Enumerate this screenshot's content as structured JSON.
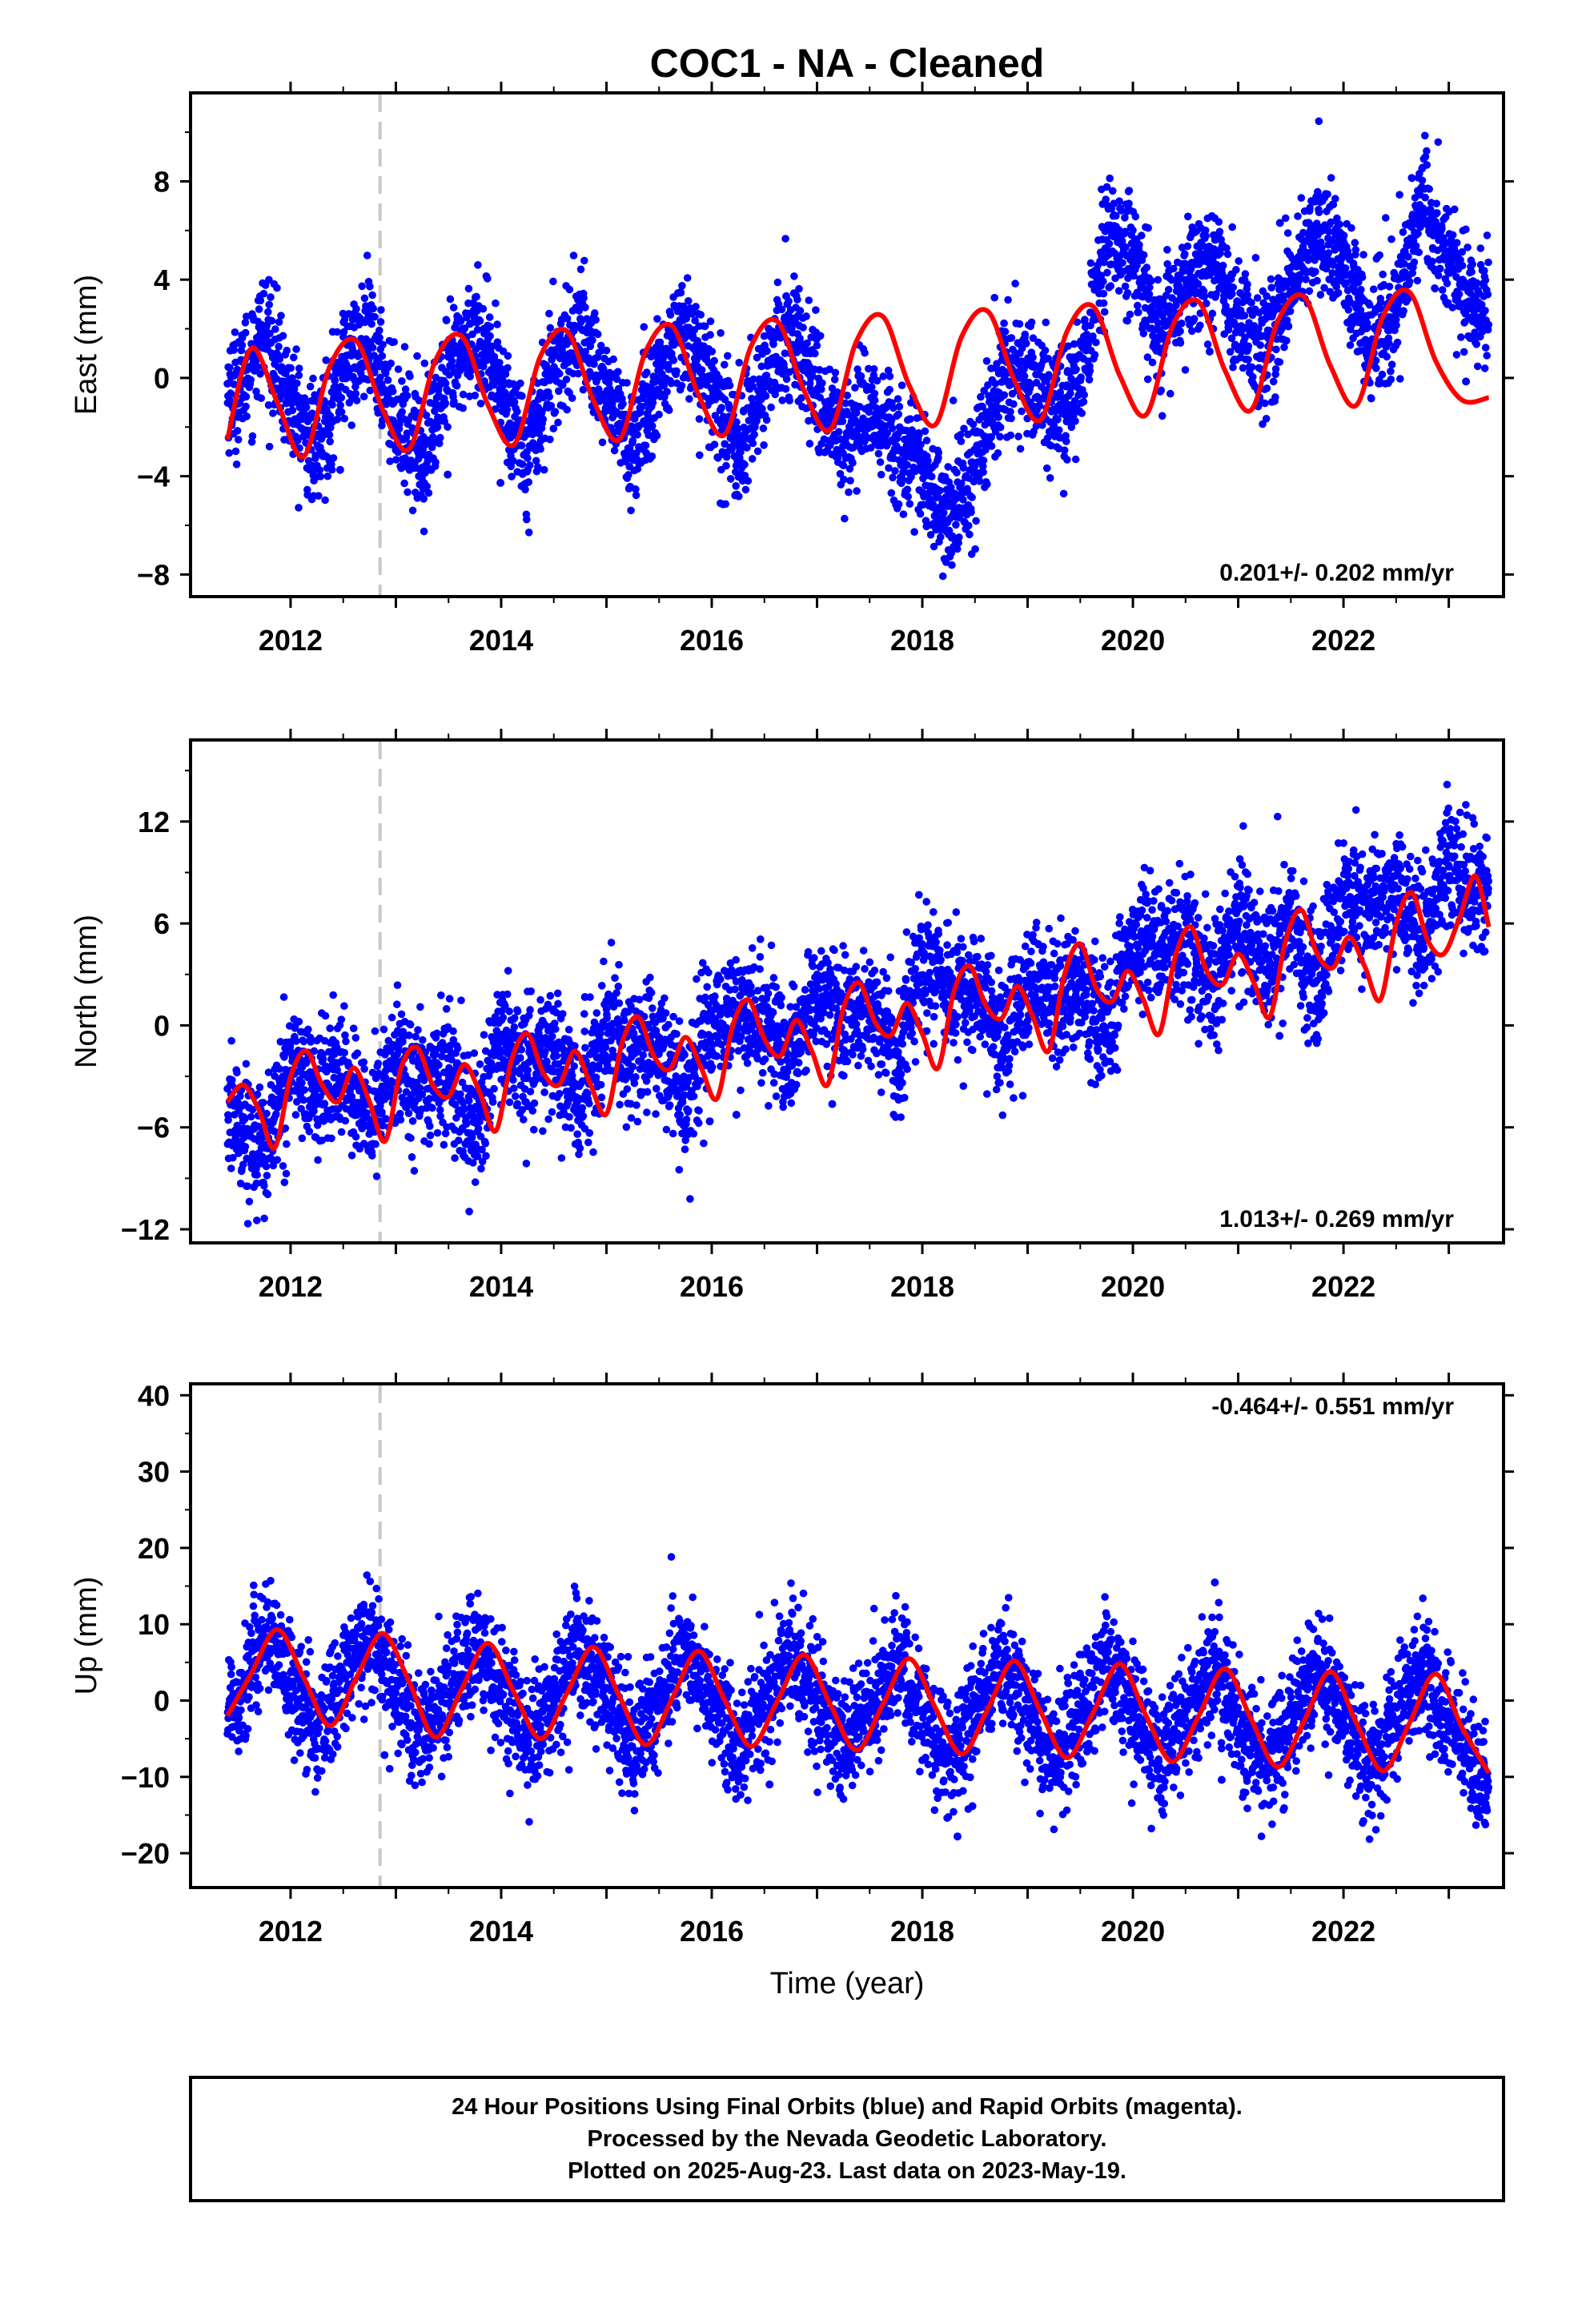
{
  "figure": {
    "title": "COC1  - NA - Cleaned",
    "xlabel": "Time (year)",
    "footer": [
      "24 Hour Positions Using Final Orbits (blue) and Rapid Orbits (magenta).",
      "Processed by the Nevada Geodetic Laboratory.",
      "Plotted on 2025-Aug-23. Last data on 2023-May-19."
    ],
    "colors": {
      "data": "#0000ff",
      "fit": "#ff0000",
      "event_line": "#c8c8c8",
      "axes": "#000000"
    }
  },
  "chart_data": [
    {
      "type": "scatter",
      "component": "East",
      "ylabel": "East (mm)",
      "xlim": [
        2011.05,
        2023.52
      ],
      "ylim": [
        -8.9,
        11.6
      ],
      "yticks": [
        -8,
        -4,
        0,
        4,
        8
      ],
      "xticks": [
        2012,
        2014,
        2016,
        2018,
        2020,
        2022
      ],
      "rate_label": "0.201+/- 0.202 mm/yr",
      "rate_position": "bottom-right",
      "event_line_x": 2012.85,
      "data_range": [
        2011.4,
        2023.38
      ],
      "series": [
        {
          "name": "",
          "style": "blue-dots",
          "x": [
            2011.5,
            2011.75,
            2012.0,
            2012.25,
            2012.5,
            2012.75,
            2013.0,
            2013.25,
            2013.5,
            2013.75,
            2014.0,
            2014.25,
            2014.5,
            2014.75,
            2015.0,
            2015.25,
            2015.5,
            2015.75,
            2016.0,
            2016.25,
            2016.5,
            2016.75,
            2017.0,
            2017.25,
            2017.5,
            2017.75,
            2018.0,
            2018.25,
            2018.5,
            2018.75,
            2019.0,
            2019.25,
            2019.5,
            2019.75,
            2020.0,
            2020.25,
            2020.5,
            2020.75,
            2021.0,
            2021.25,
            2021.5,
            2021.75,
            2022.0,
            2022.25,
            2022.5,
            2022.75,
            2023.0,
            2023.25
          ],
          "y": [
            -0.5,
            2.0,
            -1.0,
            -3.0,
            0.5,
            1.5,
            -1.5,
            -3.0,
            0.0,
            2.0,
            -0.5,
            -3.0,
            0.5,
            2.0,
            -0.5,
            -3.0,
            0.0,
            2.0,
            -0.5,
            -3.0,
            0.0,
            2.0,
            -0.5,
            -2.5,
            -1.0,
            -2.5,
            -4.0,
            -5.5,
            -4.0,
            0.5,
            0.0,
            -1.0,
            -0.5,
            6.0,
            5.0,
            1.5,
            4.0,
            5.0,
            2.5,
            1.0,
            3.5,
            6.0,
            4.5,
            1.5,
            3.0,
            7.0,
            5.0,
            3.0
          ],
          "noise_mm": 1.2
        },
        {
          "name": "",
          "style": "red-fit",
          "x": [
            2011.4,
            2011.625,
            2011.875,
            2012.125,
            2012.375,
            2012.625,
            2012.875,
            2013.125,
            2013.375,
            2013.625,
            2013.875,
            2014.125,
            2014.375,
            2014.625,
            2014.875,
            2015.125,
            2015.375,
            2015.625,
            2015.875,
            2016.125,
            2016.375,
            2016.625,
            2016.875,
            2017.125,
            2017.375,
            2017.625,
            2017.875,
            2018.125,
            2018.375,
            2018.625,
            2018.875,
            2019.125,
            2019.375,
            2019.625,
            2019.875,
            2020.125,
            2020.375,
            2020.625,
            2020.875,
            2021.125,
            2021.375,
            2021.625,
            2021.875,
            2022.125,
            2022.375,
            2022.625,
            2022.875,
            2023.125,
            2023.38
          ],
          "y": [
            -2.5,
            1.2,
            -1.0,
            -3.2,
            0.5,
            1.5,
            -1.3,
            -2.9,
            0.7,
            1.7,
            -1.1,
            -2.7,
            0.9,
            1.9,
            -0.9,
            -2.5,
            1.1,
            2.1,
            -0.7,
            -2.3,
            1.3,
            2.3,
            -0.5,
            -2.1,
            1.5,
            2.5,
            -0.3,
            -1.9,
            1.7,
            2.7,
            -0.1,
            -1.7,
            1.9,
            2.9,
            0.1,
            -1.5,
            2.1,
            3.1,
            0.3,
            -1.3,
            2.3,
            3.3,
            0.5,
            -1.1,
            2.5,
            3.5,
            0.7,
            -0.9,
            -0.8
          ]
        }
      ]
    },
    {
      "type": "scatter",
      "component": "North",
      "ylabel": "North (mm)",
      "xlim": [
        2011.05,
        2023.52
      ],
      "ylim": [
        -12.8,
        16.8
      ],
      "yticks": [
        -12,
        -6,
        0,
        6,
        12
      ],
      "xticks": [
        2012,
        2014,
        2016,
        2018,
        2020,
        2022
      ],
      "rate_label": "1.013+/- 0.269 mm/yr",
      "rate_position": "bottom-right",
      "event_line_x": 2012.85,
      "data_range": [
        2011.4,
        2023.38
      ],
      "series": [
        {
          "name": "",
          "style": "blue-dots",
          "x": [
            2011.5,
            2011.75,
            2012.0,
            2012.25,
            2012.5,
            2012.75,
            2013.0,
            2013.25,
            2013.5,
            2013.75,
            2014.0,
            2014.25,
            2014.5,
            2014.75,
            2015.0,
            2015.25,
            2015.5,
            2015.75,
            2016.0,
            2016.25,
            2016.5,
            2016.75,
            2017.0,
            2017.25,
            2017.5,
            2017.75,
            2018.0,
            2018.25,
            2018.5,
            2018.75,
            2019.0,
            2019.25,
            2019.5,
            2019.75,
            2020.0,
            2020.25,
            2020.5,
            2020.75,
            2021.0,
            2021.25,
            2021.5,
            2021.75,
            2022.0,
            2022.25,
            2022.5,
            2022.75,
            2023.0,
            2023.25
          ],
          "y": [
            -5.5,
            -7.5,
            -2.0,
            -4.0,
            -2.5,
            -6.0,
            -2.0,
            -3.5,
            -2.5,
            -6.0,
            -1.0,
            -2.5,
            -1.5,
            -5.0,
            0.0,
            -2.0,
            -1.0,
            -4.5,
            0.5,
            0.5,
            0.5,
            -2.0,
            2.0,
            0.5,
            1.0,
            -1.5,
            3.5,
            2.0,
            2.0,
            -1.0,
            2.0,
            1.5,
            2.5,
            -0.5,
            5.0,
            4.5,
            5.0,
            2.0,
            7.0,
            4.0,
            6.0,
            2.5,
            8.0,
            7.0,
            8.0,
            4.5,
            10.0,
            7.5
          ],
          "noise_mm": 1.8
        },
        {
          "name": "",
          "style": "red-fit",
          "x": [
            2011.4,
            2011.55,
            2011.7,
            2011.85,
            2012.0,
            2012.15,
            2012.3,
            2012.45,
            2012.6,
            2012.75,
            2012.9,
            2013.05,
            2013.2,
            2013.35,
            2013.5,
            2013.65,
            2013.8,
            2013.95,
            2014.1,
            2014.25,
            2014.4,
            2014.55,
            2014.7,
            2014.85,
            2015.0,
            2015.15,
            2015.3,
            2015.45,
            2015.6,
            2015.75,
            2015.9,
            2016.05,
            2016.2,
            2016.35,
            2016.5,
            2016.65,
            2016.8,
            2016.95,
            2017.1,
            2017.25,
            2017.4,
            2017.55,
            2017.7,
            2017.85,
            2018.0,
            2018.15,
            2018.3,
            2018.45,
            2018.6,
            2018.75,
            2018.9,
            2019.05,
            2019.2,
            2019.35,
            2019.5,
            2019.65,
            2019.8,
            2019.95,
            2020.1,
            2020.25,
            2020.4,
            2020.55,
            2020.7,
            2020.85,
            2021.0,
            2021.15,
            2021.3,
            2021.45,
            2021.6,
            2021.75,
            2021.9,
            2022.05,
            2022.2,
            2022.35,
            2022.5,
            2022.65,
            2022.8,
            2022.95,
            2023.1,
            2023.25,
            2023.38
          ],
          "y": [
            -4.5,
            -3.5,
            -5.0,
            -7.2,
            -3.0,
            -1.5,
            -3.5,
            -4.5,
            -2.5,
            -4.5,
            -6.8,
            -2.5,
            -1.3,
            -3.5,
            -4.2,
            -2.3,
            -4.0,
            -6.2,
            -2.0,
            -0.5,
            -2.8,
            -3.5,
            -1.5,
            -3.5,
            -5.2,
            -1.0,
            0.5,
            -1.8,
            -2.6,
            -0.7,
            -2.5,
            -4.3,
            0.0,
            1.5,
            -0.8,
            -1.8,
            0.3,
            -1.5,
            -3.5,
            1.0,
            2.5,
            0.2,
            -0.6,
            1.3,
            -0.5,
            -2.5,
            2.0,
            3.5,
            1.2,
            0.4,
            2.3,
            0.5,
            -1.5,
            3.0,
            4.8,
            2.2,
            1.4,
            3.2,
            1.5,
            -0.5,
            4.0,
            5.8,
            3.2,
            2.4,
            4.2,
            2.5,
            0.5,
            5.0,
            6.8,
            4.2,
            3.4,
            5.2,
            3.5,
            1.5,
            6.0,
            7.8,
            5.0,
            4.2,
            6.3,
            8.8,
            5.8
          ]
        }
      ]
    },
    {
      "type": "scatter",
      "component": "Up",
      "ylabel": "Up (mm)",
      "xlim": [
        2011.05,
        2023.52
      ],
      "ylim": [
        -24.5,
        41.5
      ],
      "yticks": [
        -20,
        -10,
        0,
        10,
        20,
        30,
        40
      ],
      "xticks": [
        2012,
        2014,
        2016,
        2018,
        2020,
        2022
      ],
      "rate_label": "-0.464+/- 0.551 mm/yr",
      "rate_position": "top-right",
      "event_line_x": 2012.85,
      "data_range": [
        2011.4,
        2023.38
      ],
      "series": [
        {
          "name": "",
          "style": "blue-dots",
          "x": [
            2011.5,
            2011.75,
            2012.0,
            2012.25,
            2012.5,
            2012.75,
            2013.0,
            2013.25,
            2013.5,
            2013.75,
            2014.0,
            2014.25,
            2014.5,
            2014.75,
            2015.0,
            2015.25,
            2015.5,
            2015.75,
            2016.0,
            2016.25,
            2016.5,
            2016.75,
            2017.0,
            2017.25,
            2017.5,
            2017.75,
            2018.0,
            2018.25,
            2018.5,
            2018.75,
            2019.0,
            2019.25,
            2019.5,
            2019.75,
            2020.0,
            2020.25,
            2020.5,
            2020.75,
            2021.0,
            2021.25,
            2021.5,
            2021.75,
            2022.0,
            2022.25,
            2022.5,
            2022.75,
            2023.0,
            2023.25
          ],
          "y": [
            0.0,
            9.0,
            2.0,
            -4.0,
            2.0,
            9.0,
            2.0,
            -5.0,
            1.0,
            7.0,
            1.0,
            -6.0,
            0.0,
            7.0,
            0.0,
            -6.0,
            0.0,
            7.0,
            0.0,
            -6.0,
            0.0,
            6.0,
            0.0,
            -6.0,
            -1.0,
            5.0,
            -1.0,
            -8.0,
            -1.0,
            5.0,
            -1.0,
            -8.0,
            -2.0,
            5.0,
            -1.0,
            -8.0,
            -2.0,
            4.0,
            -2.0,
            -9.0,
            -2.0,
            4.0,
            -2.0,
            -9.0,
            -2.0,
            4.0,
            -3.0,
            -10.0
          ],
          "noise_mm": 3.8
        },
        {
          "name": "",
          "style": "red-fit",
          "x": [
            2011.4,
            2011.625,
            2011.875,
            2012.125,
            2012.375,
            2012.625,
            2012.875,
            2013.125,
            2013.375,
            2013.625,
            2013.875,
            2014.125,
            2014.375,
            2014.625,
            2014.875,
            2015.125,
            2015.375,
            2015.625,
            2015.875,
            2016.125,
            2016.375,
            2016.625,
            2016.875,
            2017.125,
            2017.375,
            2017.625,
            2017.875,
            2018.125,
            2018.375,
            2018.625,
            2018.875,
            2019.125,
            2019.375,
            2019.625,
            2019.875,
            2020.125,
            2020.375,
            2020.625,
            2020.875,
            2021.125,
            2021.375,
            2021.625,
            2021.875,
            2022.125,
            2022.375,
            2022.625,
            2022.875,
            2023.125,
            2023.38
          ],
          "y": [
            -2.0,
            3.5,
            9.3,
            3.0,
            -3.3,
            3.0,
            8.8,
            2.5,
            -4.8,
            1.5,
            7.5,
            1.0,
            -5.0,
            1.0,
            7.0,
            0.5,
            -5.8,
            0.3,
            6.5,
            0.0,
            -6.0,
            0.0,
            6.0,
            -0.5,
            -6.5,
            -0.5,
            5.5,
            -1.0,
            -7.0,
            -1.0,
            5.2,
            -1.5,
            -7.5,
            -1.5,
            4.8,
            -2.0,
            -8.0,
            -2.0,
            4.2,
            -2.5,
            -8.7,
            -2.7,
            3.8,
            -3.0,
            -9.2,
            -3.0,
            3.5,
            -3.5,
            -9.5
          ]
        }
      ]
    }
  ]
}
